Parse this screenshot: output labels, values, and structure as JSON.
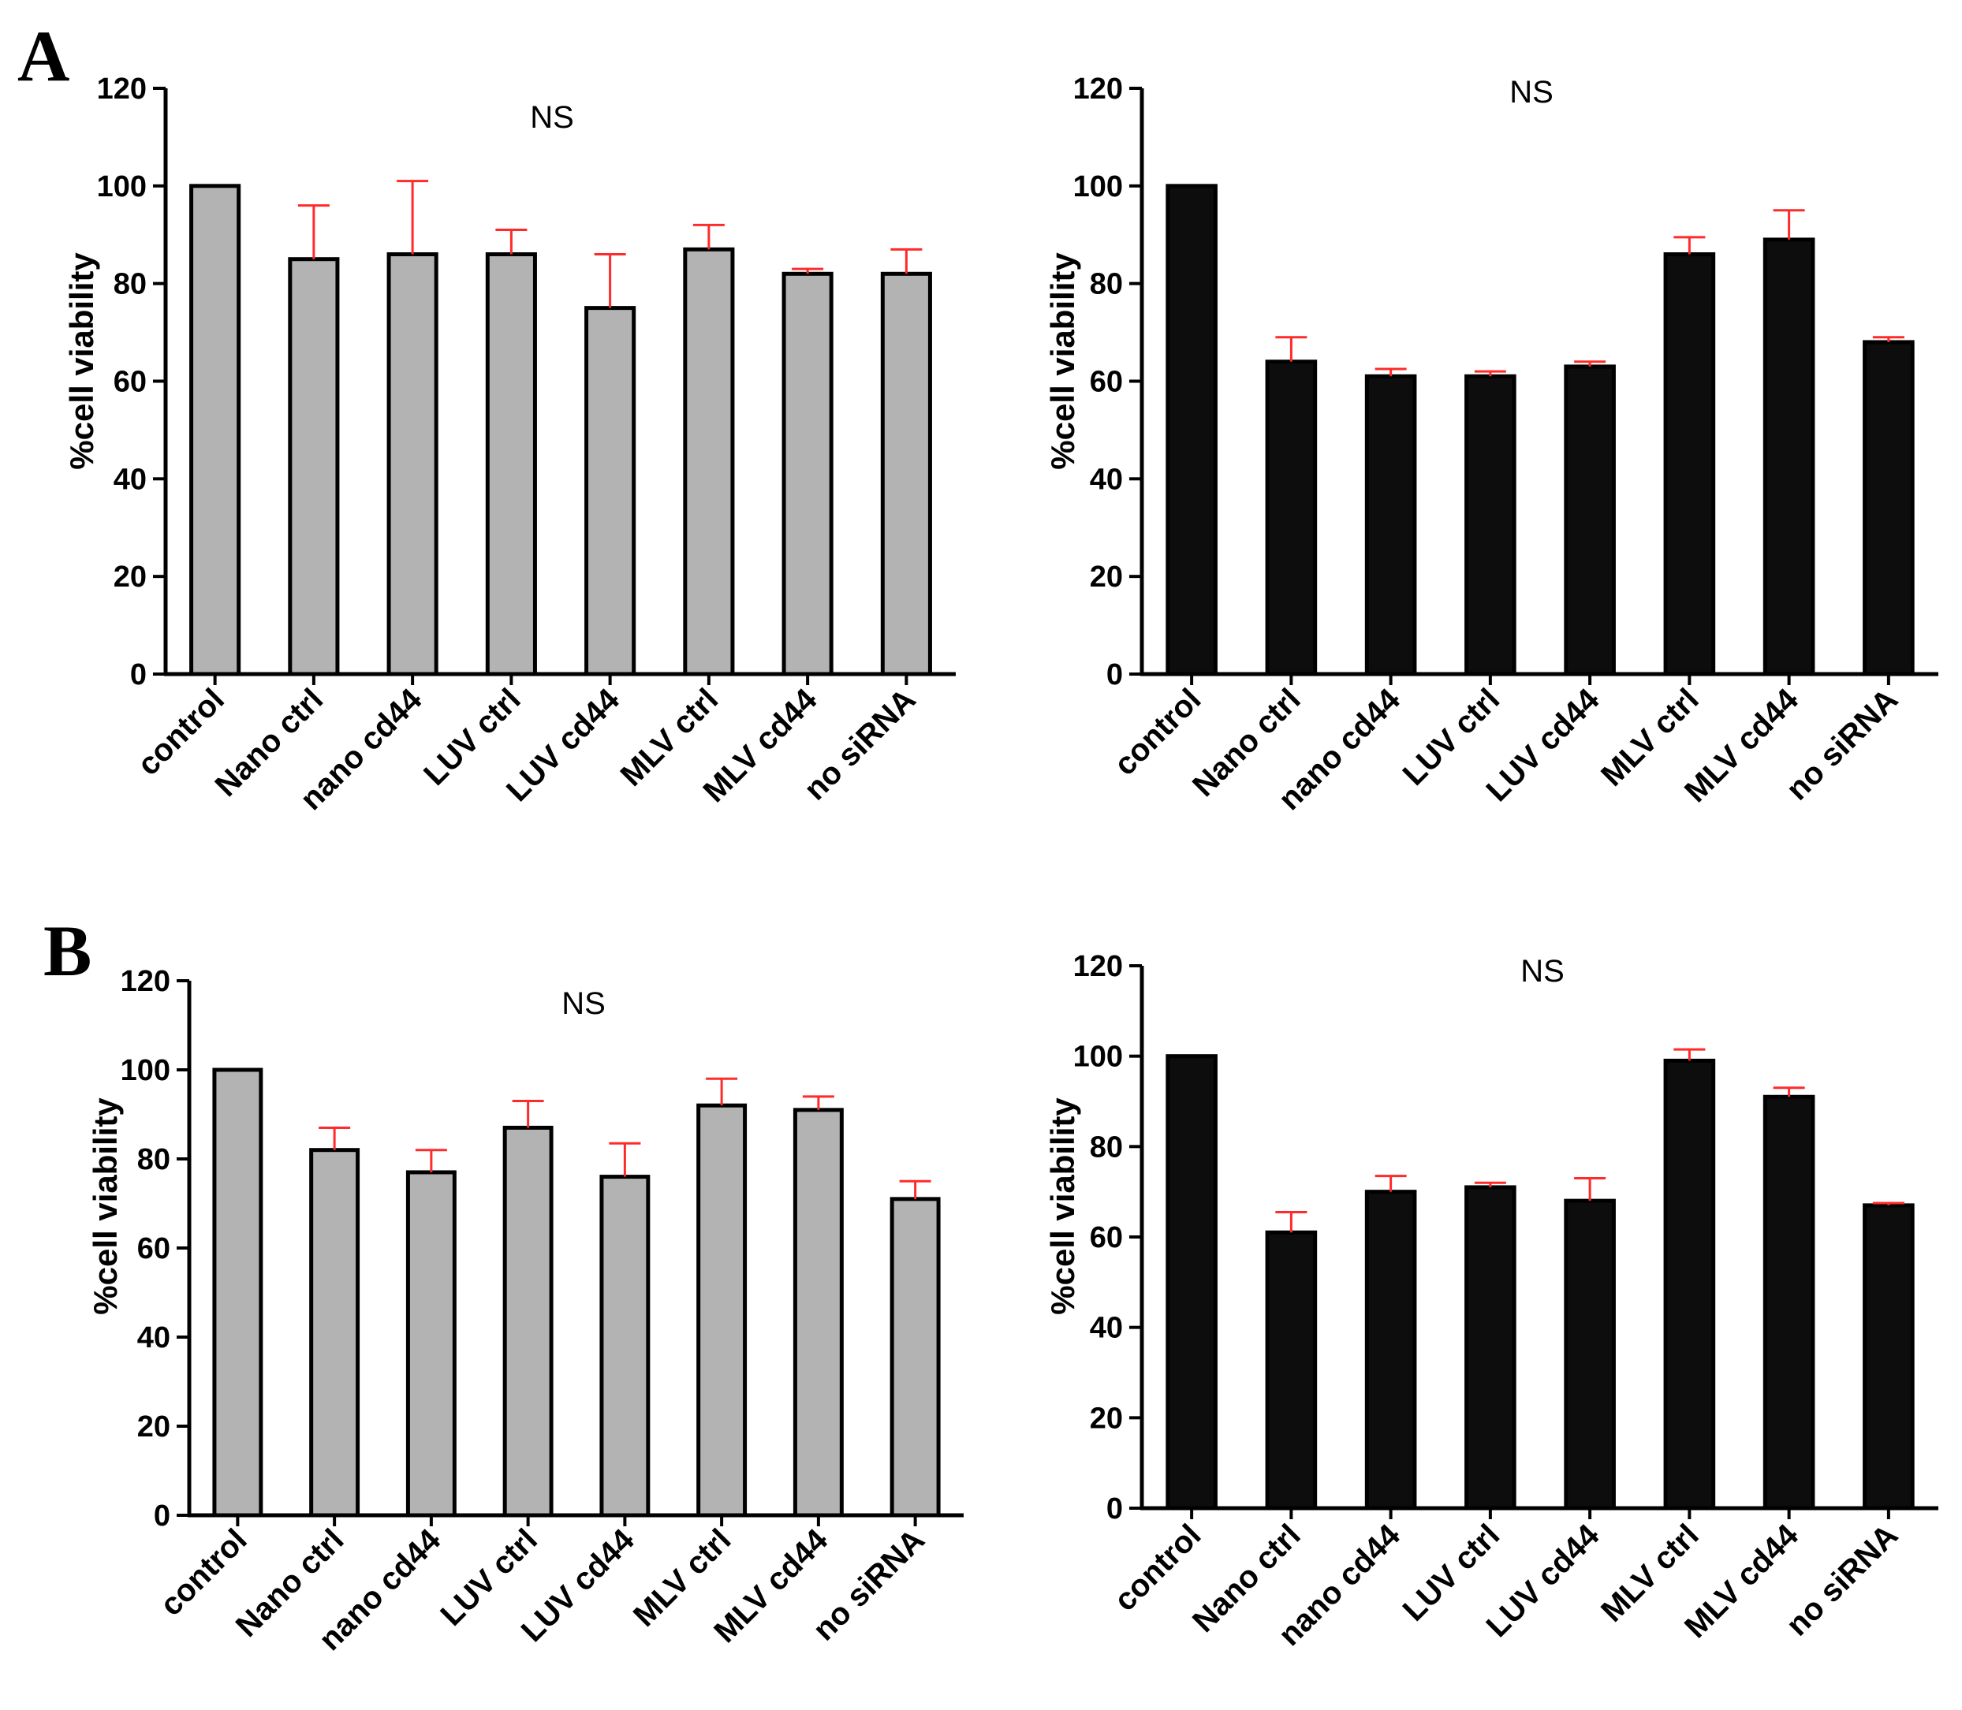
{
  "panel_labels": [
    "A",
    "B"
  ],
  "colors": {
    "gray_bar": "#b3b3b3",
    "black_bar": "#0d0d0d",
    "error_bar": "#ff2a2a",
    "axis": "#000000"
  },
  "chart_data": [
    {
      "type": "bar",
      "panel": "A",
      "title": "NS",
      "ylabel": "%cell viability",
      "xlabel": "",
      "ylim": [
        0,
        120
      ],
      "yticks": [
        "0",
        "20",
        "40",
        "60",
        "80",
        "100",
        "120"
      ],
      "categories": [
        "control",
        "Nano ctrl",
        "nano cd44",
        "LUV ctrl",
        "LUV cd44",
        "MLV ctrl",
        "MLV cd44",
        "no siRNA"
      ],
      "values": [
        100,
        85,
        86,
        86,
        75,
        87,
        82,
        82
      ],
      "errors": [
        0,
        11,
        15,
        5,
        11,
        5,
        1,
        5
      ],
      "bar_color": "#b3b3b3"
    },
    {
      "type": "bar",
      "panel": "A",
      "title": "NS",
      "ylabel": "%cell viability",
      "xlabel": "",
      "ylim": [
        0,
        120
      ],
      "yticks": [
        "0",
        "20",
        "40",
        "60",
        "80",
        "100",
        "120"
      ],
      "categories": [
        "control",
        "Nano ctrl",
        "nano cd44",
        "LUV ctrl",
        "LUV cd44",
        "MLV ctrl",
        "MLV cd44",
        "no siRNA"
      ],
      "values": [
        100,
        64,
        61,
        61,
        63,
        86,
        89,
        68
      ],
      "errors": [
        0,
        5,
        1.5,
        1,
        1,
        3.5,
        6,
        1
      ],
      "bar_color": "#0d0d0d"
    },
    {
      "type": "bar",
      "panel": "B",
      "title": "NS",
      "ylabel": "%cell viability",
      "xlabel": "",
      "ylim": [
        0,
        120
      ],
      "yticks": [
        "0",
        "20",
        "40",
        "60",
        "80",
        "100",
        "120"
      ],
      "categories": [
        "control",
        "Nano ctrl",
        "nano cd44",
        "LUV ctrl",
        "LUV cd44",
        "MLV ctrl",
        "MLV cd44",
        "no siRNA"
      ],
      "values": [
        100,
        82,
        77,
        87,
        76,
        92,
        91,
        71
      ],
      "errors": [
        0,
        5,
        5,
        6,
        7.5,
        6,
        3,
        4
      ],
      "bar_color": "#b3b3b3"
    },
    {
      "type": "bar",
      "panel": "B",
      "title": "NS",
      "ylabel": "%cell viability",
      "xlabel": "",
      "ylim": [
        0,
        120
      ],
      "yticks": [
        "0",
        "20",
        "40",
        "60",
        "80",
        "100",
        "120"
      ],
      "categories": [
        "control",
        "Nano ctrl",
        "nano cd44",
        "LUV ctrl",
        "LUV cd44",
        "MLV ctrl",
        "MLV cd44",
        "no siRNA"
      ],
      "values": [
        100,
        61,
        70,
        71,
        68,
        99,
        91,
        67
      ],
      "errors": [
        0,
        4.5,
        3.5,
        1,
        5,
        2.5,
        2,
        0.5
      ],
      "bar_color": "#0d0d0d"
    }
  ]
}
